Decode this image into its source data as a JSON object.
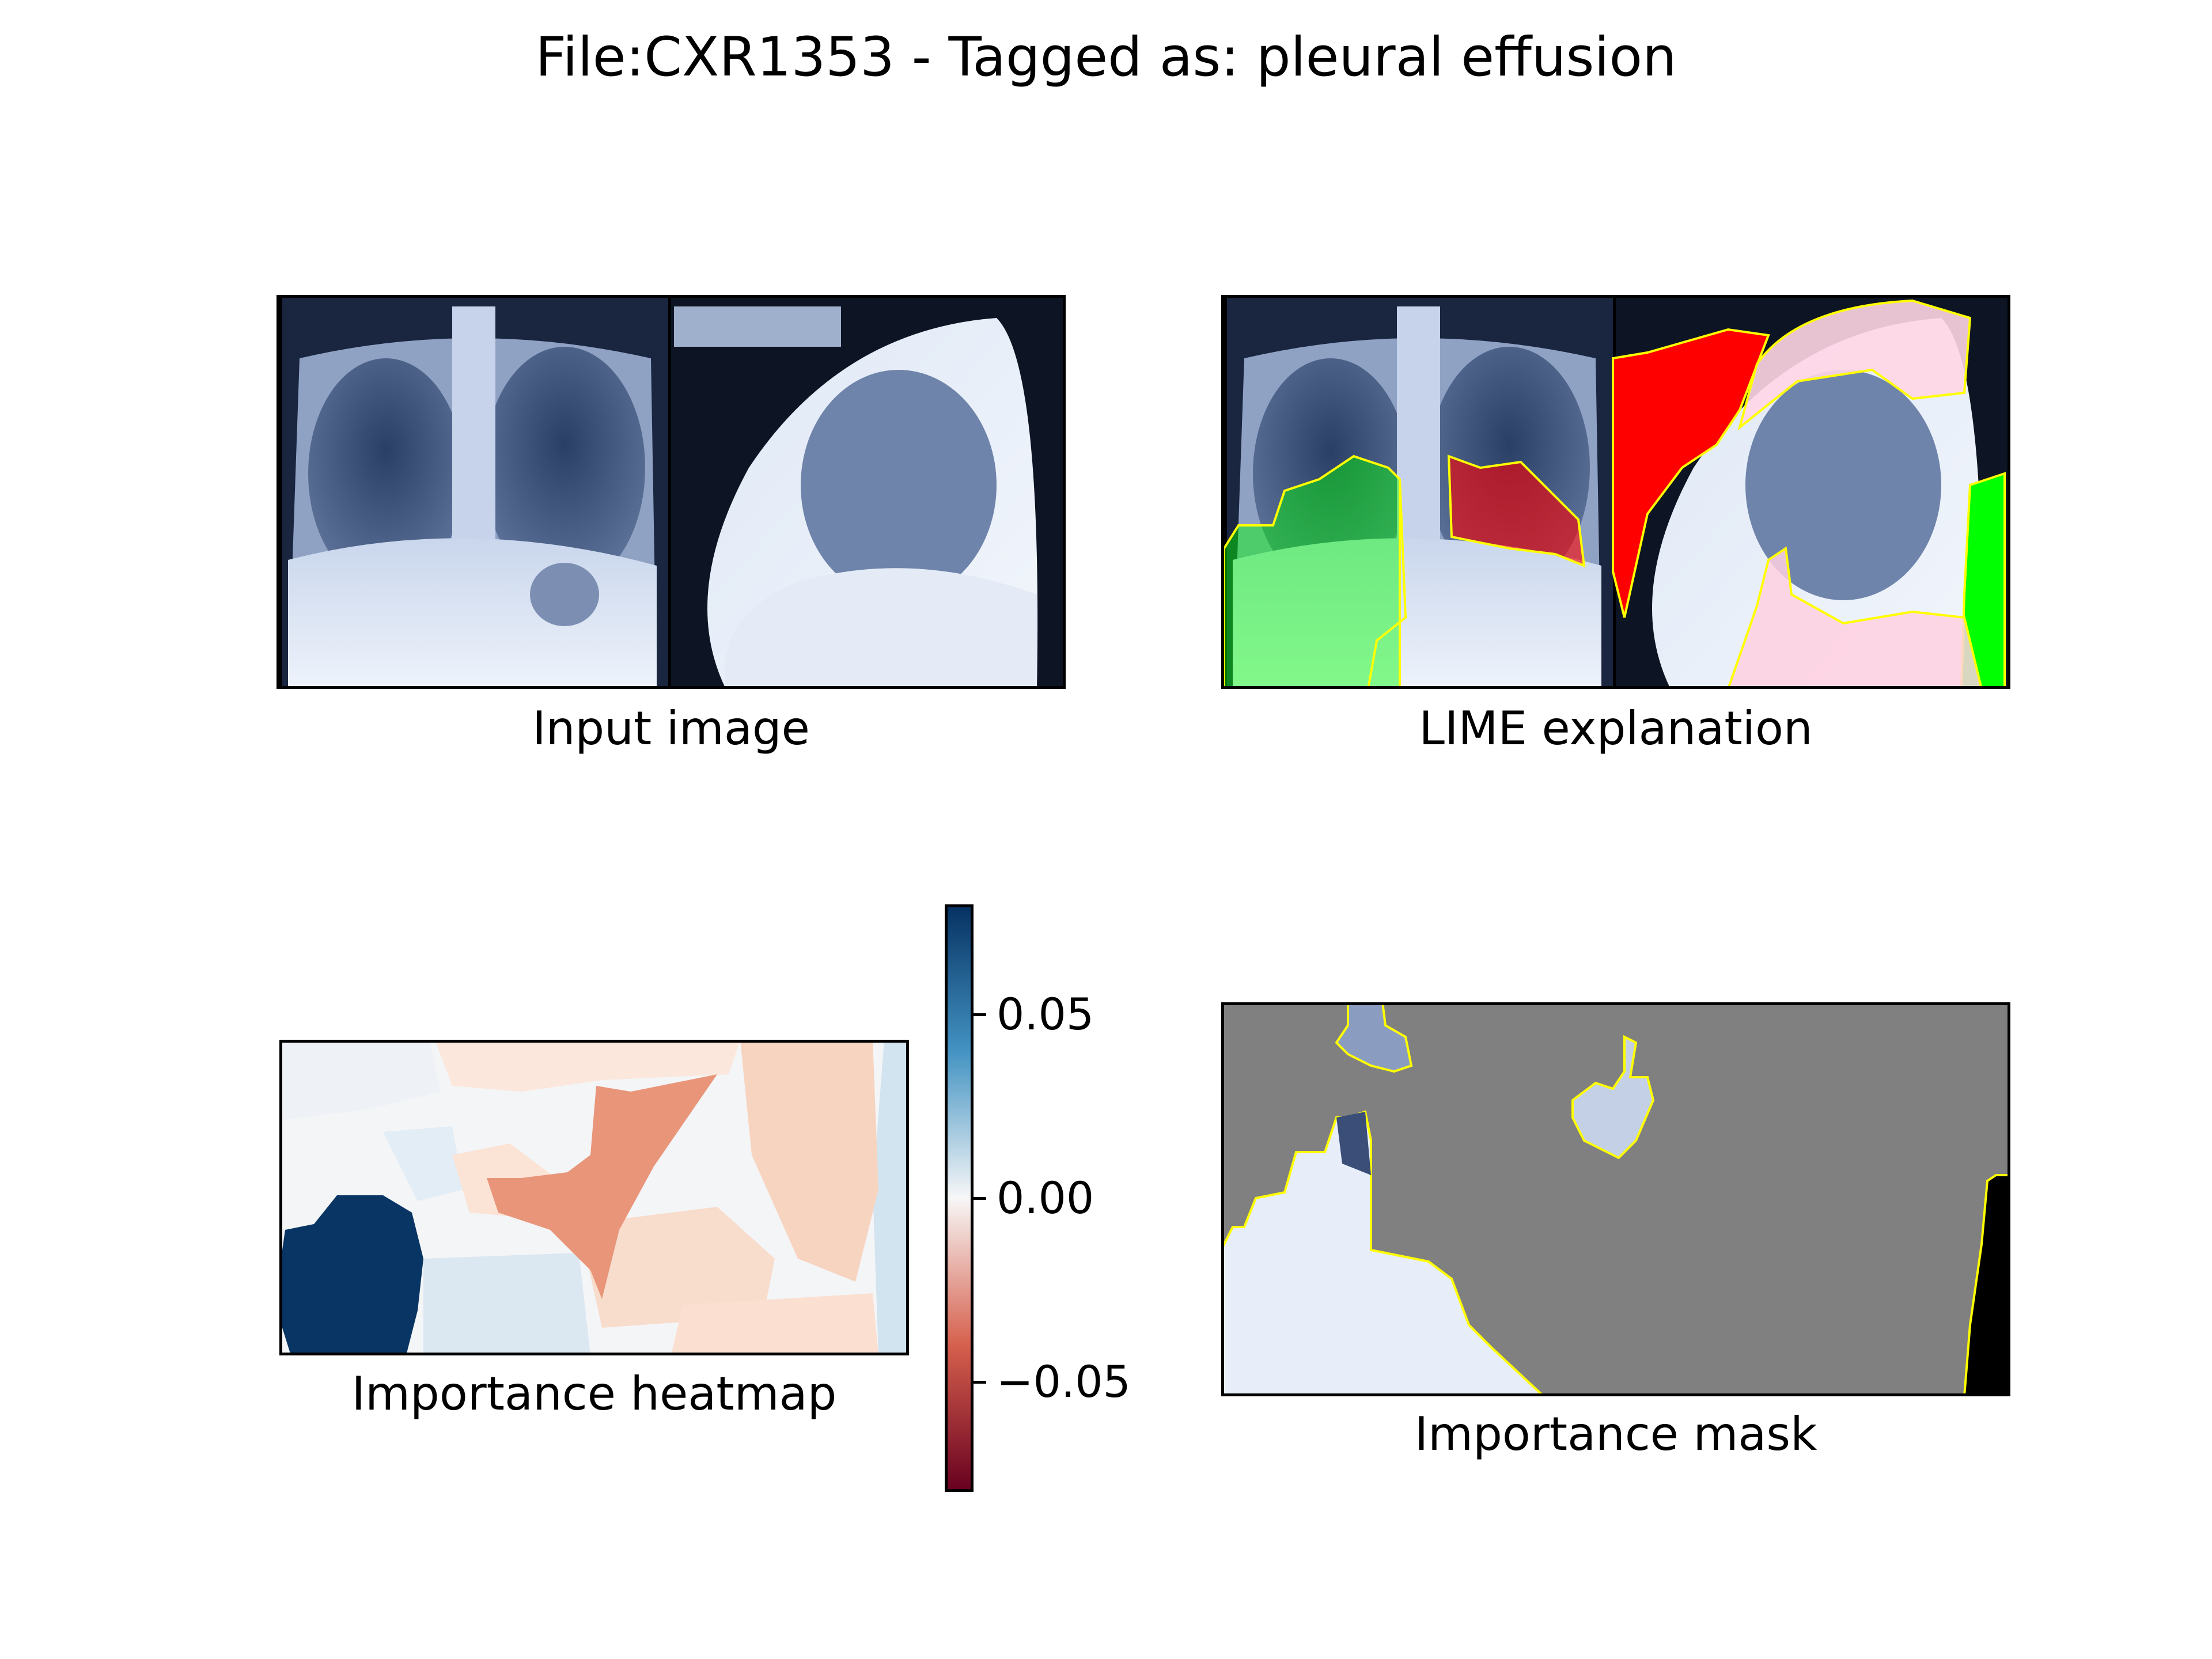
{
  "figure": {
    "title": "File:CXR1353 - Tagged as: pleural effusion"
  },
  "panels": {
    "input": {
      "caption": "Input image"
    },
    "lime": {
      "caption": "LIME explanation"
    },
    "heatmap": {
      "caption": "Importance heatmap"
    },
    "mask": {
      "caption": "Importance mask"
    }
  },
  "colorbar": {
    "ticks": [
      {
        "label": "0.05",
        "value": 0.05
      },
      {
        "label": "0.00",
        "value": 0.0
      },
      {
        "label": "−0.05",
        "value": -0.05
      }
    ],
    "range": [
      -0.08,
      0.08
    ],
    "colormap": "RdBu",
    "colors": [
      "#67001f",
      "#d6604d",
      "#f7f7f7",
      "#4393c3",
      "#053061"
    ]
  },
  "colors": {
    "positive_region": "#00ff00",
    "negative_region": "#ff0000",
    "boundary": "#ffff00",
    "mask_fill": "#808080",
    "xray_dark": "#0b1a35",
    "xray_light": "#e8eef8"
  }
}
